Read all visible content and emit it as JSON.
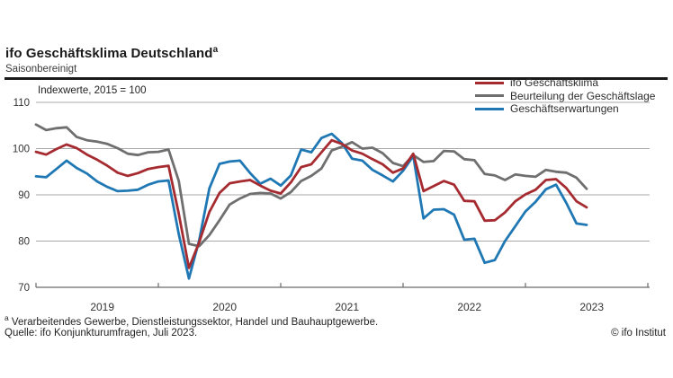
{
  "header": {
    "title": "ifo Geschäftsklima Deutschland",
    "title_superscript": "a",
    "subtitle": "Saisonbereinigt"
  },
  "chart": {
    "axis_note": "Indexwerte, 2015 = 100"
  },
  "footer": {
    "footnote_marker": "a",
    "footnote_text": " Verarbeitendes Gewerbe, Dienstleistungssektor, Handel und Bauhauptgewerbe.",
    "source": "Quelle: ifo Konjunkturumfragen, Juli 2023.",
    "copyright": "© ifo Institut"
  },
  "chart_data": {
    "type": "line",
    "title": "ifo Geschäftsklima Deutschland (saisonbereinigt)",
    "ylabel": "Indexwerte, 2015 = 100",
    "xlabel": "",
    "ylim": [
      70,
      110
    ],
    "yticks": [
      70,
      80,
      90,
      100,
      110
    ],
    "grid": true,
    "legend_position": "top-right",
    "x_tick_years": [
      "2019",
      "2020",
      "2021",
      "2022",
      "2023"
    ],
    "x": [
      "2019-01",
      "2019-02",
      "2019-03",
      "2019-04",
      "2019-05",
      "2019-06",
      "2019-07",
      "2019-08",
      "2019-09",
      "2019-10",
      "2019-11",
      "2019-12",
      "2020-01",
      "2020-02",
      "2020-03",
      "2020-04",
      "2020-05",
      "2020-06",
      "2020-07",
      "2020-08",
      "2020-09",
      "2020-10",
      "2020-11",
      "2020-12",
      "2021-01",
      "2021-02",
      "2021-03",
      "2021-04",
      "2021-05",
      "2021-06",
      "2021-07",
      "2021-08",
      "2021-09",
      "2021-10",
      "2021-11",
      "2021-12",
      "2022-01",
      "2022-02",
      "2022-03",
      "2022-04",
      "2022-05",
      "2022-06",
      "2022-07",
      "2022-08",
      "2022-09",
      "2022-10",
      "2022-11",
      "2022-12",
      "2023-01",
      "2023-02",
      "2023-03",
      "2023-04",
      "2023-05",
      "2023-06",
      "2023-07"
    ],
    "series": [
      {
        "name": "ifo Geschäftsklima",
        "color": "#a62b30",
        "values": [
          99.3,
          98.7,
          99.9,
          100.9,
          100.1,
          98.7,
          97.6,
          96.3,
          94.8,
          94.1,
          94.7,
          95.6,
          96.0,
          96.3,
          85.9,
          74.2,
          79.7,
          86.3,
          90.4,
          92.5,
          92.9,
          93.2,
          92.0,
          90.9,
          90.3,
          92.7,
          96.0,
          96.6,
          99.2,
          101.8,
          101.0,
          99.6,
          98.9,
          97.7,
          96.6,
          94.8,
          95.7,
          98.9,
          90.8,
          91.9,
          93.0,
          92.2,
          88.7,
          88.6,
          84.4,
          84.5,
          86.2,
          88.6,
          90.1,
          91.1,
          93.2,
          93.4,
          91.5,
          88.6,
          87.3
        ]
      },
      {
        "name": "Beurteilung der Geschäftslage",
        "color": "#6f6f6f",
        "values": [
          105.2,
          104.0,
          104.4,
          104.6,
          102.5,
          101.8,
          101.5,
          101.0,
          100.1,
          98.9,
          98.6,
          99.2,
          99.3,
          99.8,
          93.0,
          79.4,
          78.9,
          81.3,
          84.5,
          87.9,
          89.2,
          90.2,
          90.4,
          90.3,
          89.2,
          90.6,
          93.0,
          94.1,
          95.7,
          99.6,
          100.4,
          101.4,
          100.0,
          100.2,
          99.0,
          96.9,
          96.2,
          98.6,
          97.1,
          97.3,
          99.5,
          99.4,
          97.7,
          97.5,
          94.5,
          94.2,
          93.2,
          94.4,
          94.1,
          93.9,
          95.4,
          95.0,
          94.8,
          93.7,
          91.3
        ]
      },
      {
        "name": "Geschäftserwartungen",
        "color": "#1f78b4",
        "values": [
          94.0,
          93.8,
          95.6,
          97.4,
          95.8,
          94.6,
          92.9,
          91.7,
          90.8,
          90.9,
          91.1,
          92.2,
          92.9,
          93.1,
          81.5,
          71.9,
          80.1,
          91.4,
          96.7,
          97.2,
          97.4,
          94.7,
          92.4,
          93.5,
          92.0,
          94.2,
          99.8,
          99.2,
          102.3,
          103.2,
          101.2,
          97.8,
          97.4,
          95.4,
          94.2,
          92.9,
          95.2,
          98.4,
          84.9,
          86.8,
          86.9,
          85.7,
          80.3,
          80.5,
          75.3,
          75.9,
          80.0,
          83.2,
          86.4,
          88.5,
          91.2,
          92.2,
          88.3,
          83.8,
          83.5
        ]
      }
    ]
  }
}
